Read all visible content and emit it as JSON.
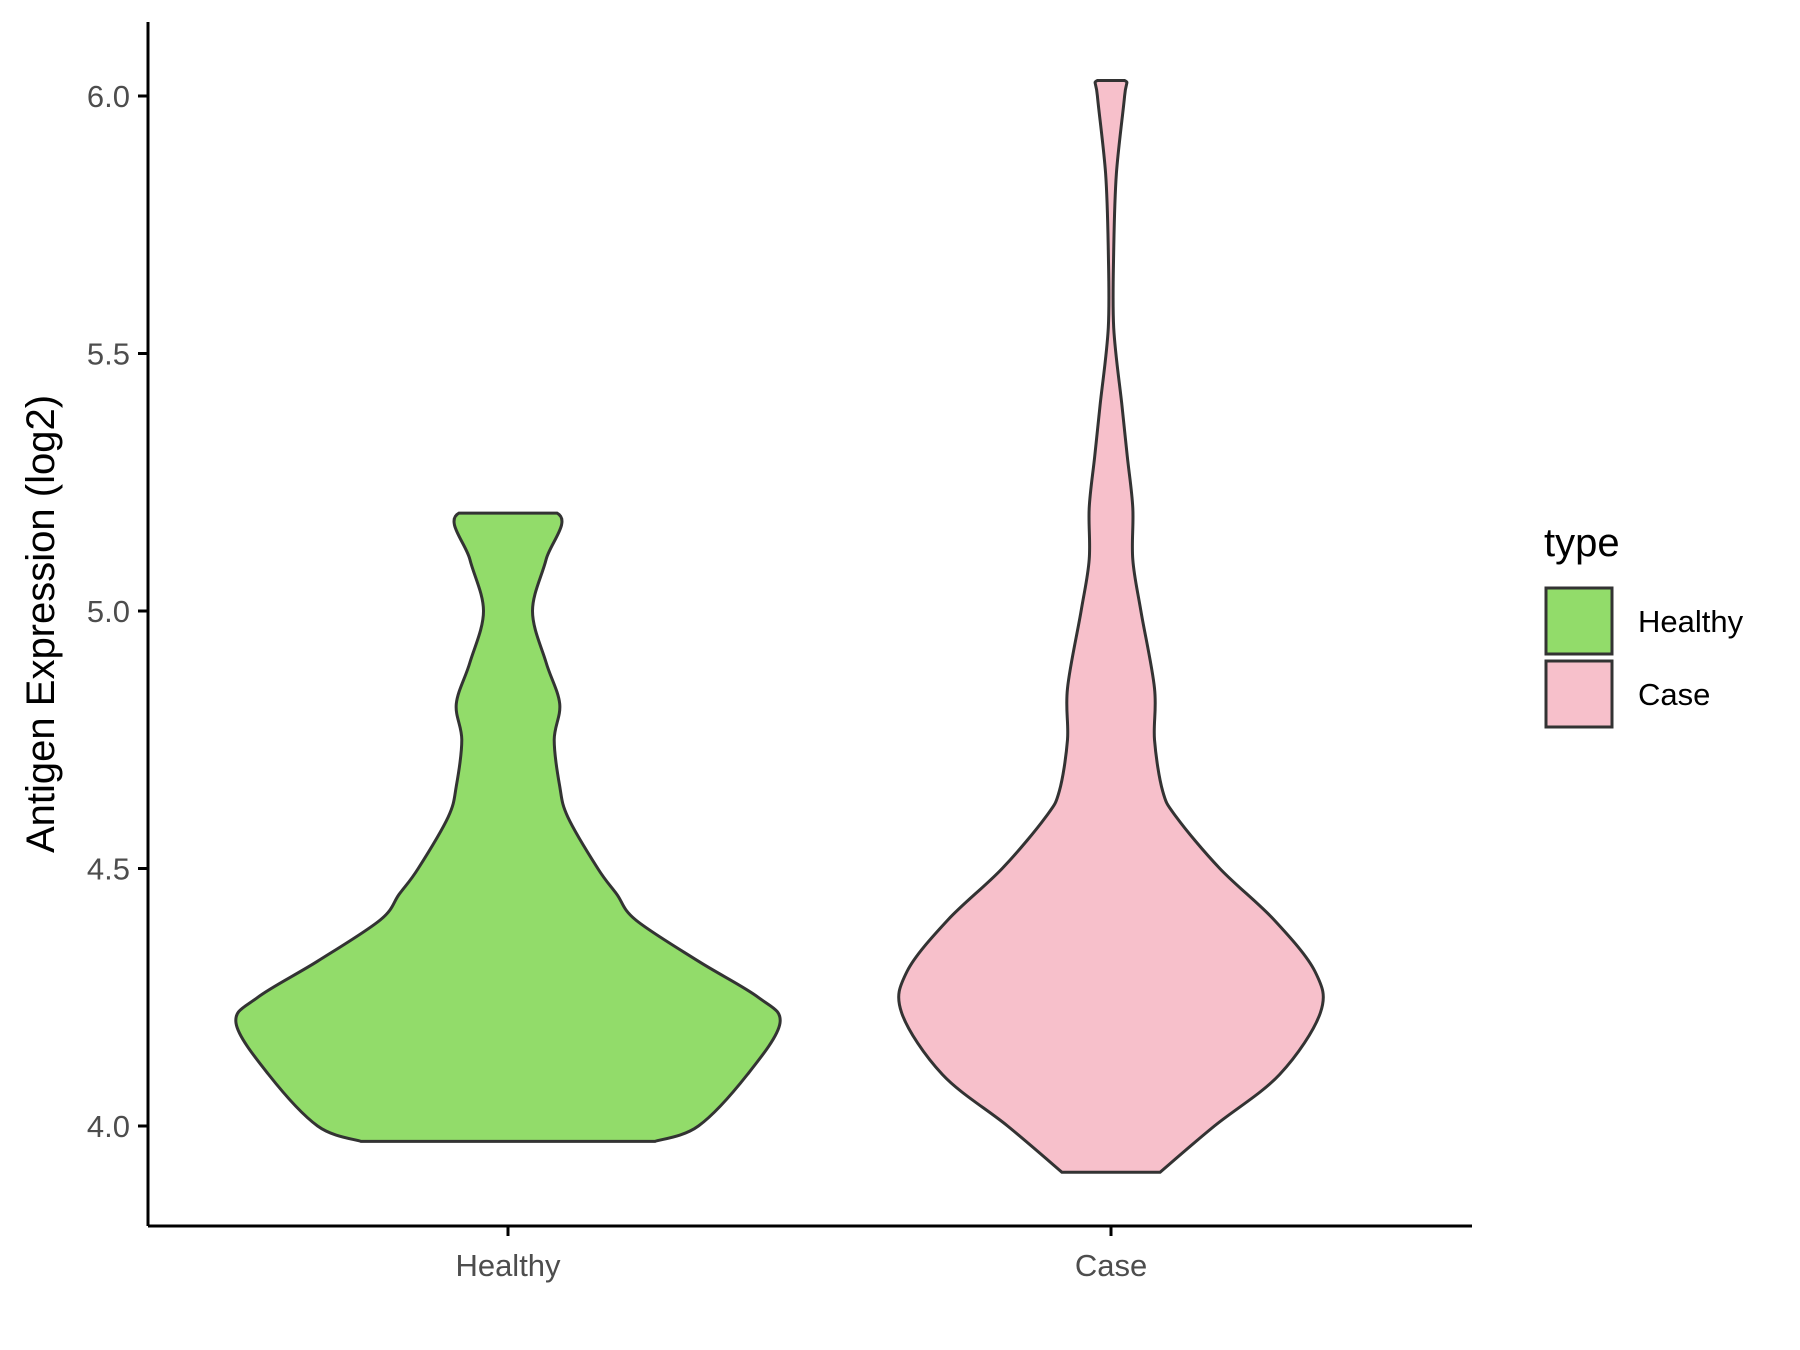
{
  "chart_data": {
    "type": "violin",
    "ylabel": "Antigen Expression (log2)",
    "xlabel": "",
    "categories": [
      "Healthy",
      "Case"
    ],
    "ylim": [
      3.8,
      6.15
    ],
    "yticks": [
      4.0,
      4.5,
      5.0,
      5.5,
      6.0
    ],
    "ytick_labels": [
      "4.0",
      "4.5",
      "5.0",
      "5.5",
      "6.0"
    ],
    "grid": false,
    "legend": {
      "title": "type",
      "placement": "right",
      "entries": [
        {
          "label": "Healthy",
          "color": "#92dc6a"
        },
        {
          "label": "Case",
          "color": "#f7c0cb"
        }
      ]
    },
    "series": [
      {
        "name": "Healthy",
        "color": "#92dc6a",
        "min": 3.97,
        "max": 5.19,
        "density_profile": [
          [
            3.97,
            0.54
          ],
          [
            4.0,
            0.7
          ],
          [
            4.1,
            0.88
          ],
          [
            4.2,
            1.0
          ],
          [
            4.25,
            0.92
          ],
          [
            4.32,
            0.7
          ],
          [
            4.4,
            0.47
          ],
          [
            4.45,
            0.4
          ],
          [
            4.5,
            0.33
          ],
          [
            4.6,
            0.22
          ],
          [
            4.66,
            0.19
          ],
          [
            4.75,
            0.17
          ],
          [
            4.82,
            0.19
          ],
          [
            4.9,
            0.14
          ],
          [
            5.0,
            0.09
          ],
          [
            5.1,
            0.14
          ],
          [
            5.19,
            0.18
          ]
        ]
      },
      {
        "name": "Case",
        "color": "#f7c0cb",
        "min": 3.91,
        "max": 6.03,
        "density_profile": [
          [
            3.91,
            0.18
          ],
          [
            4.0,
            0.38
          ],
          [
            4.1,
            0.62
          ],
          [
            4.22,
            0.77
          ],
          [
            4.3,
            0.75
          ],
          [
            4.4,
            0.6
          ],
          [
            4.5,
            0.4
          ],
          [
            4.6,
            0.24
          ],
          [
            4.65,
            0.19
          ],
          [
            4.75,
            0.16
          ],
          [
            4.85,
            0.16
          ],
          [
            5.0,
            0.11
          ],
          [
            5.1,
            0.08
          ],
          [
            5.2,
            0.08
          ],
          [
            5.3,
            0.06
          ],
          [
            5.4,
            0.04
          ],
          [
            5.55,
            0.01
          ],
          [
            5.7,
            0.01
          ],
          [
            5.85,
            0.02
          ],
          [
            6.0,
            0.05
          ],
          [
            6.03,
            0.05
          ]
        ]
      }
    ]
  }
}
